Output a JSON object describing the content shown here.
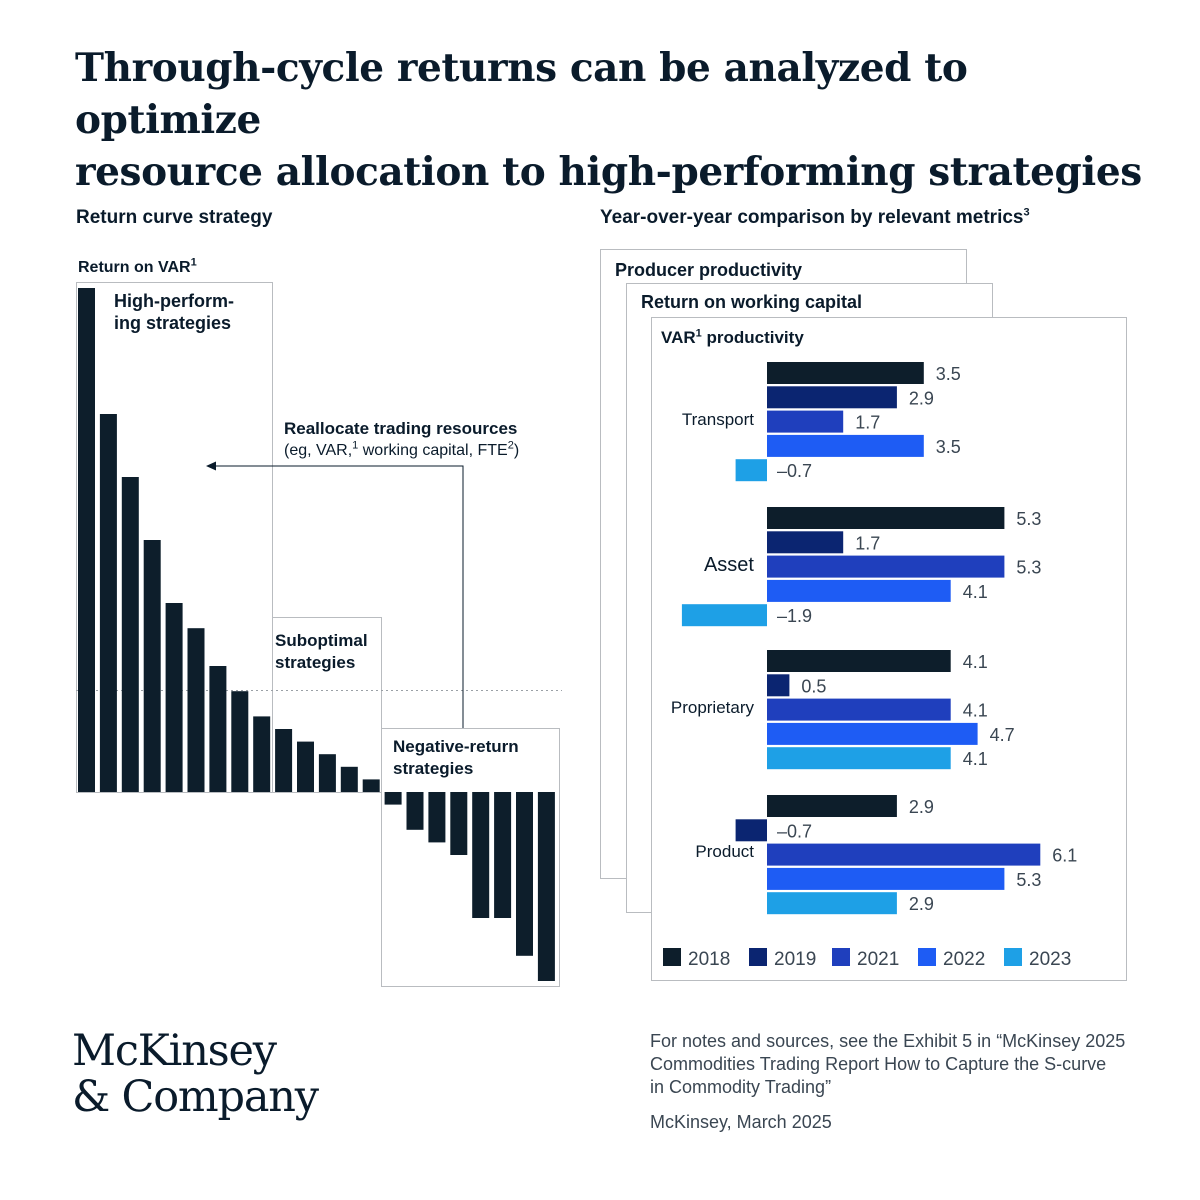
{
  "title": {
    "line1": "Through-cycle returns can be analyzed to optimize",
    "line2": "resource allocation to high-performing strategies"
  },
  "left": {
    "subtitle": "Return curve strategy",
    "axis_label": "Return on VAR",
    "axis_sup": "1",
    "high_label_1": "High-perform-",
    "high_label_2": "ing strategies",
    "sub_label_1": "Suboptimal",
    "sub_label_2": "strategies",
    "neg_label_1": "Negative-return",
    "neg_label_2": "strategies",
    "realloc_title": "Reallocate trading resources",
    "realloc_detail_a": "(eg, VAR,",
    "realloc_sup1": "1",
    "realloc_detail_b": " working capital, FTE",
    "realloc_sup2": "2",
    "realloc_detail_c": ")"
  },
  "right": {
    "subtitle": "Year-over-year comparison by relevant metrics",
    "subtitle_sup": "3",
    "card1": "Producer productivity",
    "card2": "Return on working capital",
    "card3_label": "VAR",
    "card3_sup": "1",
    "card3_rest": " productivity"
  },
  "chart_data": [
    {
      "type": "bar",
      "title": "Return curve strategy",
      "ylabel": "Return on VAR",
      "values": [
        100,
        75,
        62.5,
        50,
        37.5,
        32.5,
        25,
        20,
        15,
        12.5,
        10,
        7.5,
        5,
        2.5,
        -2.5,
        -7.5,
        -10,
        -12.5,
        -25,
        -25,
        -32.5,
        -37.5
      ],
      "groups": [
        {
          "name": "High-performing strategies",
          "count": 9
        },
        {
          "name": "Suboptimal strategies",
          "count": 5
        },
        {
          "name": "Negative-return strategies",
          "count": 8
        }
      ],
      "grid": false
    },
    {
      "type": "bar",
      "orientation": "horizontal",
      "title": "VAR productivity",
      "categories": [
        "Transport",
        "Asset",
        "Proprietary",
        "Product"
      ],
      "series": [
        {
          "name": "2018",
          "color": "#0d1e2b",
          "values": [
            3.5,
            5.3,
            4.1,
            2.9
          ]
        },
        {
          "name": "2019",
          "color": "#0b2571",
          "values": [
            2.9,
            1.7,
            0.5,
            -0.7
          ]
        },
        {
          "name": "2021",
          "color": "#1f3fbd",
          "values": [
            1.7,
            5.3,
            4.1,
            6.1
          ]
        },
        {
          "name": "2022",
          "color": "#1e5cf4",
          "values": [
            3.5,
            4.1,
            4.7,
            5.3
          ]
        },
        {
          "name": "2023",
          "color": "#1ea0e6",
          "values": [
            -0.7,
            -1.9,
            4.1,
            2.9
          ]
        }
      ],
      "labels": [
        [
          "3.5",
          "2.9",
          "1.7",
          "3.5",
          "–0.7"
        ],
        [
          "5.3",
          "1.7",
          "5.3",
          "4.1",
          "–1.9"
        ],
        [
          "4.1",
          "0.5",
          "4.1",
          "4.7",
          "4.1"
        ],
        [
          "2.9",
          "–0.7",
          "6.1",
          "5.3",
          "2.9"
        ]
      ],
      "legend": "bottom",
      "grid": false
    }
  ],
  "footer": {
    "logo_line1": "McKinsey",
    "logo_line2": "& Company",
    "source_1": "For notes and sources, see the Exhibit 5 in “McKinsey 2025",
    "source_2": "Commodities Trading Report  How to Capture the S-curve",
    "source_3": "in Commodity Trading”",
    "date": "McKinsey, March 2025"
  }
}
